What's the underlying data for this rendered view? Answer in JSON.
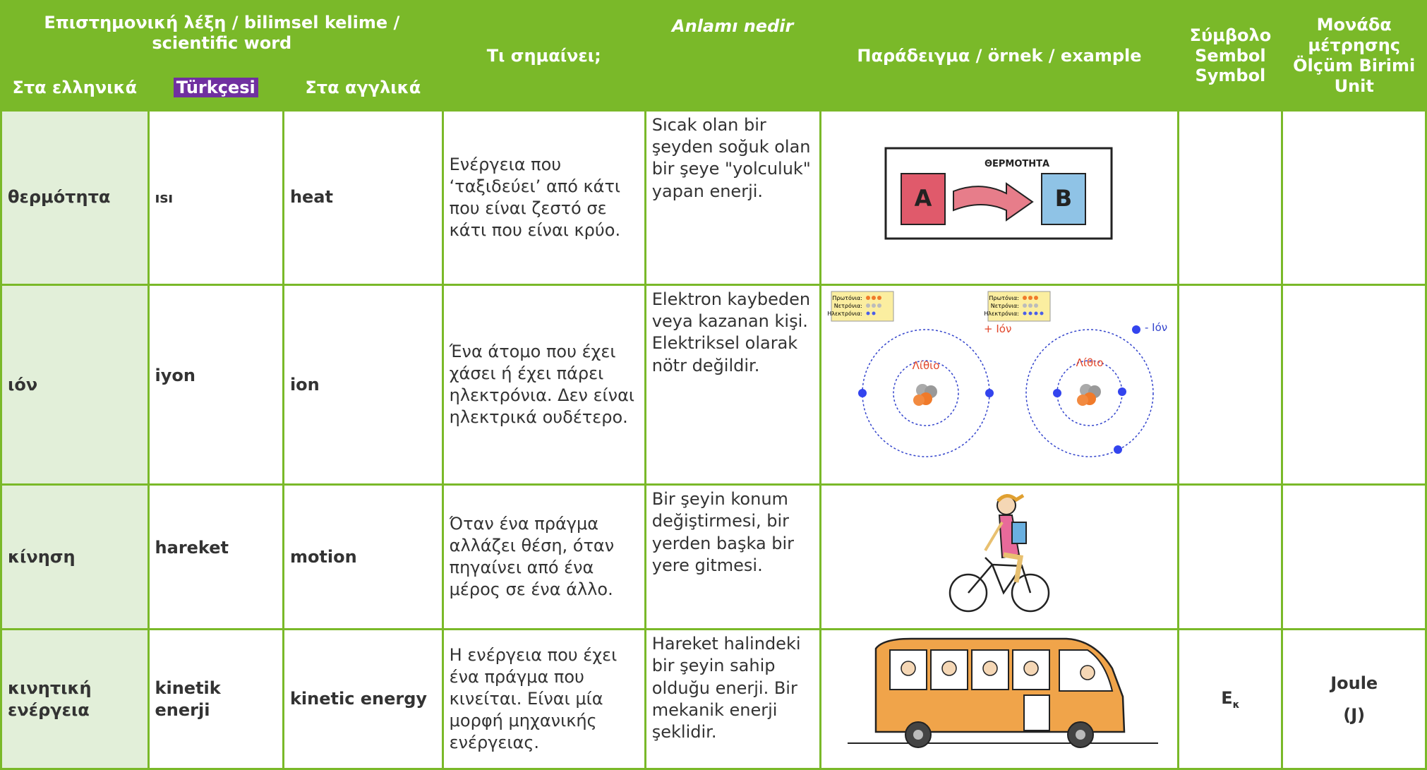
{
  "header": {
    "scientific_word": "Επιστημονική λέξη / bilimsel kelime / scientific word",
    "greek": "Στα ελληνικά",
    "turkish": "Türkçesi",
    "english": "Στα αγγλικά",
    "meaning_greek": "Τι σημαίνει;",
    "meaning_turkish": "Anlamı nedir",
    "example": "Παράδειγμα / örnek / example",
    "symbol": [
      "Σύμβολο",
      "Sembol",
      "Symbol"
    ],
    "unit": [
      "Μονάδα μέτρησης",
      "Ölçüm Birimi",
      "Unit"
    ]
  },
  "rows": [
    {
      "greek": "θερμότητα",
      "turkish": "ısı",
      "english": "heat",
      "meaning_greek": "Ενέργεια που ‘ταξιδεύει’ από κάτι που είναι ζεστό σε κάτι που είναι κρύο.",
      "meaning_turkish": "Sıcak olan bir şeyden soğuk olan bir şeye \"yolculuk\" yapan enerji."
    },
    {
      "greek": "ιόν",
      "turkish": "iyon",
      "english": "ion",
      "meaning_greek": "Ένα άτομο που έχει χάσει ή έχει πάρει ηλεκτρόνια. Δεν είναι ηλεκτρικά ουδέτερο.",
      "meaning_turkish": "Elektron kaybeden veya kazanan kişi. Elektriksel olarak nötr değildir."
    },
    {
      "greek": "κίνηση",
      "turkish": "hareket",
      "english": "motion",
      "meaning_greek": "Όταν ένα πράγμα αλλάζει θέση, όταν πηγαίνει από ένα μέρος σε ένα άλλο.",
      "meaning_turkish": "Bir şeyin konum değiştirmesi, bir yerden başka bir yere gitmesi."
    },
    {
      "greek": "κινητική ενέργεια",
      "turkish": "kinetik enerji",
      "english": "kinetic energy",
      "meaning_greek": "Η ενέργεια που έχει ένα πράγμα που κινείται. Είναι μία μορφή μηχανικής ενέργειας.",
      "meaning_turkish": "Hareket halindeki bir şeyin sahip olduğu enerji. Bir mekanik enerji şeklidir.",
      "symbol": {
        "base": "E",
        "subscript": "κ"
      },
      "unit": [
        "Joule",
        "(J)"
      ]
    }
  ],
  "illustrations": {
    "heat": {
      "title": "ΘΕΡΜΟΤΗΤΑ",
      "from": "A",
      "to": "B"
    },
    "ion": {
      "legend": [
        "Πρωτόνια:",
        "Νετρόνια:",
        "Ηλεκτρόνια:"
      ],
      "element": "Λίθιο",
      "positive": "+ Ιόν",
      "negative": "- Ιόν"
    }
  }
}
